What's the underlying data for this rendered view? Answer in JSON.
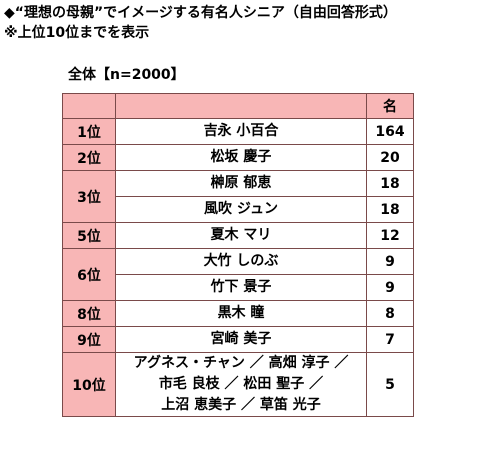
{
  "header": {
    "title": "◆“理想の母親”でイメージする有名人シニア（自由回答形式）",
    "note": "※上位10位までを表示",
    "subtitle": "全体【n=2000】"
  },
  "table": {
    "count_header": "名",
    "groups": [
      {
        "rank": "1位",
        "entries": [
          {
            "name": [
              "吉永 小百合"
            ],
            "count": 164
          }
        ]
      },
      {
        "rank": "2位",
        "entries": [
          {
            "name": [
              "松坂 慶子"
            ],
            "count": 20
          }
        ]
      },
      {
        "rank": "3位",
        "entries": [
          {
            "name": [
              "榊原 郁恵"
            ],
            "count": 18
          },
          {
            "name": [
              "風吹 ジュン"
            ],
            "count": 18
          }
        ]
      },
      {
        "rank": "5位",
        "entries": [
          {
            "name": [
              "夏木 マリ"
            ],
            "count": 12
          }
        ]
      },
      {
        "rank": "6位",
        "entries": [
          {
            "name": [
              "大竹 しのぶ"
            ],
            "count": 9
          },
          {
            "name": [
              "竹下 景子"
            ],
            "count": 9
          }
        ]
      },
      {
        "rank": "8位",
        "entries": [
          {
            "name": [
              "黒木 瞳"
            ],
            "count": 8
          }
        ]
      },
      {
        "rank": "9位",
        "entries": [
          {
            "name": [
              "宮崎 美子"
            ],
            "count": 7
          }
        ]
      },
      {
        "rank": "10位",
        "entries": [
          {
            "name": [
              "アグネス・チャン ／ 高畑 淳子 ／",
              "市毛 良枝 ／ 松田 聖子 ／",
              "上沼 恵美子 ／ 草笛 光子"
            ],
            "count": 5
          }
        ]
      }
    ]
  }
}
